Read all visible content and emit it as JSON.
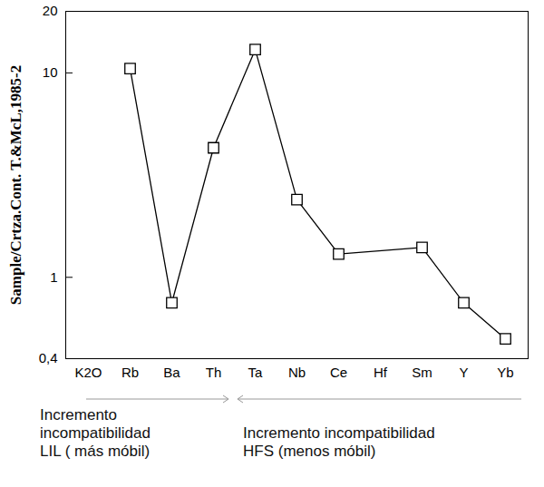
{
  "chart_data": {
    "type": "line",
    "y_label": "Sample/Crtza.Cont. T.&McL,1985-2",
    "categories": [
      "K2O",
      "Rb",
      "Ba",
      "Th",
      "Ta",
      "Nb",
      "Ce",
      "Hf",
      "Sm",
      "Y",
      "Yb"
    ],
    "values": [
      null,
      10.5,
      0.75,
      4.3,
      13,
      2.4,
      1.3,
      null,
      1.4,
      0.75,
      0.5
    ],
    "color": "#000000",
    "marker": "square",
    "line_style": "solid",
    "log": "y",
    "ylim": [
      0.4,
      20
    ],
    "yticks": [
      {
        "value": 0.4,
        "label": "0,4"
      },
      1,
      10,
      20
    ],
    "annotations": [
      "Incremento\nincompatibilidad\nLIL ( más móbil)",
      "Incremento incompatibilidad\nHFS (menos móbil)"
    ]
  }
}
